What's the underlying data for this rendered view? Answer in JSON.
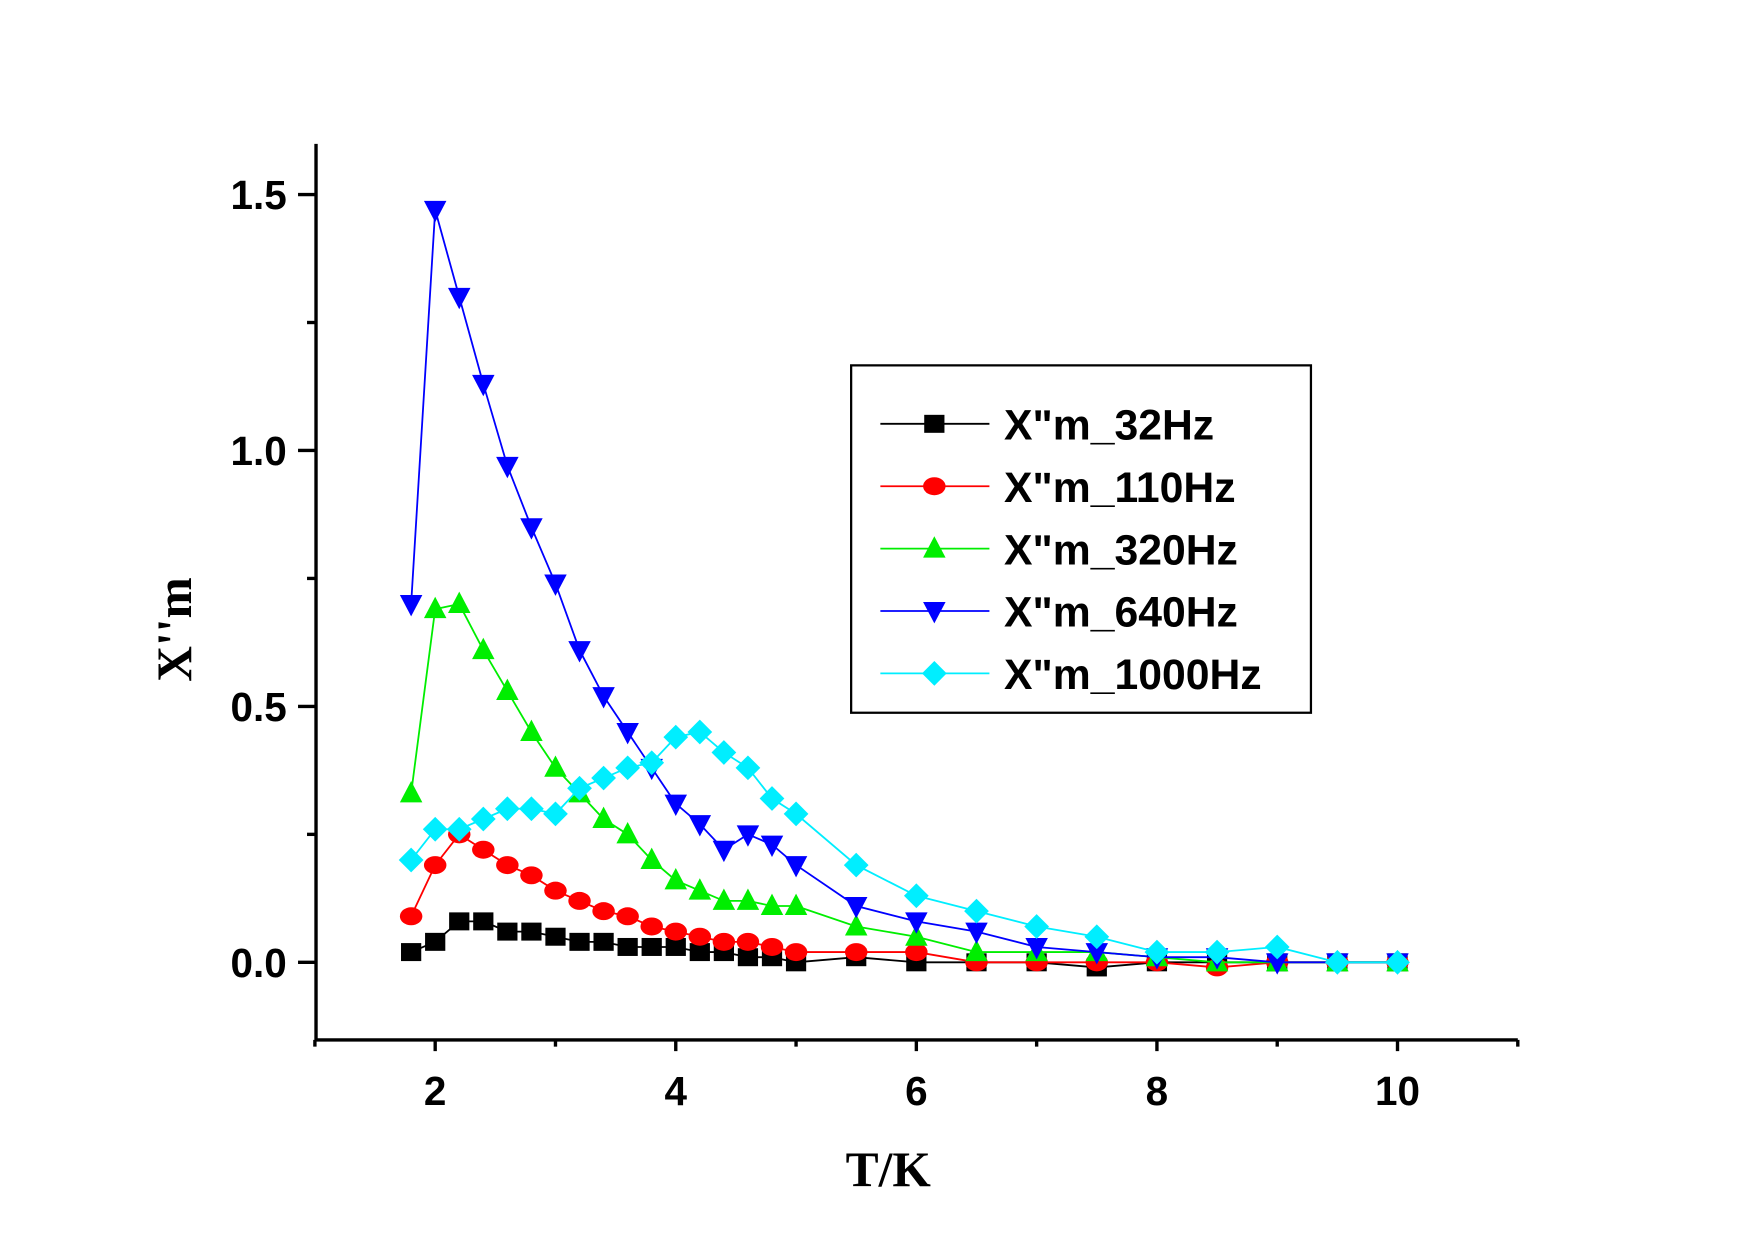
{
  "chart_data": {
    "type": "line",
    "title": "",
    "xlabel": "T/K",
    "ylabel": "X''m",
    "xlim": [
      1,
      11
    ],
    "ylim": [
      -0.15,
      1.6
    ],
    "xticks": [
      2,
      4,
      6,
      8,
      10
    ],
    "xtick_labels": [
      "2",
      "4",
      "6",
      "8",
      "10"
    ],
    "yticks": [
      0.0,
      0.5,
      1.0,
      1.5
    ],
    "ytick_labels": [
      "0.0",
      "0.5",
      "1.0",
      "1.5"
    ],
    "grid": false,
    "legend_position": "upper-right",
    "x": [
      1.8,
      2.0,
      2.2,
      2.4,
      2.6,
      2.8,
      3.0,
      3.2,
      3.4,
      3.6,
      3.8,
      4.0,
      4.2,
      4.4,
      4.6,
      4.8,
      5.0,
      5.5,
      6.0,
      6.5,
      7.0,
      7.5,
      8.0,
      8.5,
      9.0,
      9.5,
      10.0
    ],
    "series": [
      {
        "name": "X\"m_32Hz",
        "color": "#000000",
        "marker": "square",
        "values": [
          0.02,
          0.04,
          0.08,
          0.08,
          0.06,
          0.06,
          0.05,
          0.04,
          0.04,
          0.03,
          0.03,
          0.03,
          0.02,
          0.02,
          0.01,
          0.01,
          0.0,
          0.01,
          0.0,
          0.0,
          0.0,
          -0.01,
          0.0,
          0.0,
          0.0,
          0.0,
          0.0
        ]
      },
      {
        "name": "X\"m_110Hz",
        "color": "#ff0000",
        "marker": "circle",
        "values": [
          0.09,
          0.19,
          0.25,
          0.22,
          0.19,
          0.17,
          0.14,
          0.12,
          0.1,
          0.09,
          0.07,
          0.06,
          0.05,
          0.04,
          0.04,
          0.03,
          0.02,
          0.02,
          0.02,
          0.0,
          0.0,
          0.0,
          0.0,
          -0.01,
          0.0,
          0.0,
          0.0
        ]
      },
      {
        "name": "X\"m_320Hz",
        "color": "#00ee00",
        "marker": "triangle-up",
        "values": [
          0.33,
          0.69,
          0.7,
          0.61,
          0.53,
          0.45,
          0.38,
          0.33,
          0.28,
          0.25,
          0.2,
          0.16,
          0.14,
          0.12,
          0.12,
          0.11,
          0.11,
          0.07,
          0.05,
          0.02,
          0.02,
          0.02,
          0.01,
          0.0,
          0.0,
          0.0,
          0.0
        ]
      },
      {
        "name": "X\"m_640Hz",
        "color": "#0000ff",
        "marker": "triangle-down",
        "values": [
          0.7,
          1.47,
          1.3,
          1.13,
          0.97,
          0.85,
          0.74,
          0.61,
          0.52,
          0.45,
          0.38,
          0.31,
          0.27,
          0.22,
          0.25,
          0.23,
          0.19,
          0.11,
          0.08,
          0.06,
          0.03,
          0.02,
          0.01,
          0.01,
          0.0,
          0.0,
          0.0
        ]
      },
      {
        "name": "X\"m_1000Hz",
        "color": "#00eeff",
        "marker": "diamond",
        "values": [
          0.2,
          0.26,
          0.26,
          0.28,
          0.3,
          0.3,
          0.29,
          0.34,
          0.36,
          0.38,
          0.39,
          0.44,
          0.45,
          0.41,
          0.38,
          0.32,
          0.29,
          0.19,
          0.13,
          0.1,
          0.07,
          0.05,
          0.02,
          0.02,
          0.03,
          0.0,
          0.0
        ]
      }
    ]
  }
}
